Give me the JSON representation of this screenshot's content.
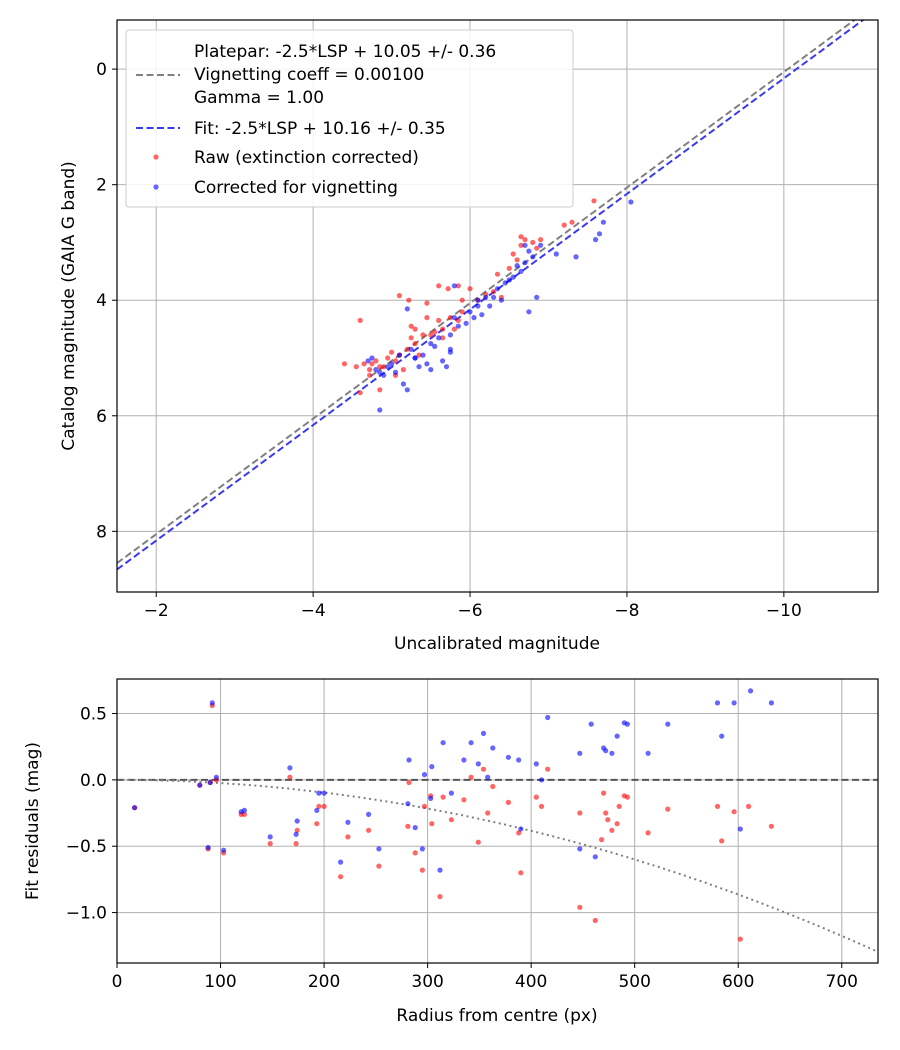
{
  "colors": {
    "raw": "#ff0000",
    "corrected": "#0000ff",
    "platepar_line": "#808080",
    "fit_line": "#3a3aee",
    "grid": "#b0b0b0",
    "vignetting_curve": "#808080"
  },
  "chart_data": [
    {
      "type": "scatter",
      "xlabel": "Uncalibrated magnitude",
      "ylabel": "Catalog magnitude (GAIA G band)",
      "xlim": [
        -1.5,
        -11.2
      ],
      "ylim": [
        9.05,
        -0.85
      ],
      "x_inverted": true,
      "y_inverted": true,
      "xticks": [
        -2,
        -4,
        -6,
        -8,
        -10
      ],
      "xtick_labels": [
        "−2",
        "−4",
        "−6",
        "−8",
        "−10"
      ],
      "yticks": [
        0,
        2,
        4,
        6,
        8
      ],
      "ytick_labels": [
        "0",
        "2",
        "4",
        "6",
        "8"
      ],
      "grid": true,
      "legend": {
        "placement": "top-left",
        "platepar_lines": [
          "Platepar: -2.5*LSP + 10.05 +/- 0.36",
          "Vignetting coeff = 0.00100",
          "Gamma = 1.00"
        ],
        "fit_label": "Fit: -2.5*LSP + 10.16 +/- 0.35",
        "raw_label": "Raw (extinction corrected)",
        "corrected_label": "Corrected for vignetting"
      },
      "lines": [
        {
          "name": "Platepar",
          "slope": 1,
          "intercept": 10.05,
          "style": "dashed"
        },
        {
          "name": "Fit",
          "slope": 1,
          "intercept": 10.16,
          "style": "dashed"
        }
      ],
      "series": [
        {
          "name": "Raw (extinction corrected)",
          "points": [
            [
              -4.75,
              5.1
            ],
            [
              -4.72,
              5.2
            ],
            [
              -4.85,
              5.15
            ],
            [
              -4.8,
              5.05
            ],
            [
              -4.9,
              5.15
            ],
            [
              -4.65,
              5.1
            ],
            [
              -4.6,
              5.6
            ],
            [
              -4.72,
              5.3
            ],
            [
              -4.95,
              5.0
            ],
            [
              -5.0,
              4.9
            ],
            [
              -5.05,
              5.05
            ],
            [
              -5.1,
              4.95
            ],
            [
              -5.15,
              5.2
            ],
            [
              -5.2,
              4.85
            ],
            [
              -5.25,
              4.65
            ],
            [
              -5.3,
              4.5
            ],
            [
              -5.3,
              4.75
            ],
            [
              -5.35,
              4.95
            ],
            [
              -5.1,
              3.92
            ],
            [
              -5.22,
              4.0
            ],
            [
              -5.25,
              4.45
            ],
            [
              -5.4,
              4.6
            ],
            [
              -5.45,
              4.3
            ],
            [
              -5.5,
              4.6
            ],
            [
              -5.55,
              4.55
            ],
            [
              -5.6,
              4.35
            ],
            [
              -5.65,
              4.5
            ],
            [
              -5.45,
              4.05
            ],
            [
              -5.6,
              3.75
            ],
            [
              -5.72,
              3.8
            ],
            [
              -5.75,
              4.3
            ],
            [
              -5.65,
              4.65
            ],
            [
              -5.8,
              4.5
            ],
            [
              -5.85,
              4.35
            ],
            [
              -5.9,
              4.2
            ],
            [
              -5.9,
              4.0
            ],
            [
              -6.0,
              3.8
            ],
            [
              -6.1,
              4.0
            ],
            [
              -6.2,
              3.9
            ],
            [
              -6.3,
              3.85
            ],
            [
              -6.4,
              3.95
            ],
            [
              -6.35,
              3.55
            ],
            [
              -6.5,
              3.45
            ],
            [
              -6.55,
              3.2
            ],
            [
              -6.6,
              3.3
            ],
            [
              -6.65,
              3.05
            ],
            [
              -6.7,
              2.95
            ],
            [
              -6.65,
              2.9
            ],
            [
              -6.8,
              3.0
            ],
            [
              -6.85,
              3.1
            ],
            [
              -6.9,
              2.95
            ],
            [
              -7.3,
              2.65
            ],
            [
              -7.2,
              2.7
            ],
            [
              -7.58,
              2.28
            ],
            [
              -4.6,
              4.35
            ],
            [
              -4.55,
              5.15
            ],
            [
              -5.05,
              5.3
            ],
            [
              -4.85,
              5.55
            ],
            [
              -4.4,
              5.1
            ],
            [
              -5.85,
              3.75
            ]
          ]
        },
        {
          "name": "Corrected for vignetting",
          "points": [
            [
              -4.7,
              5.05
            ],
            [
              -4.75,
              5.0
            ],
            [
              -4.8,
              5.2
            ],
            [
              -4.85,
              5.25
            ],
            [
              -4.9,
              5.3
            ],
            [
              -4.95,
              5.15
            ],
            [
              -5.0,
              5.1
            ],
            [
              -5.05,
              5.25
            ],
            [
              -5.1,
              4.95
            ],
            [
              -5.15,
              5.45
            ],
            [
              -5.2,
              5.55
            ],
            [
              -5.25,
              4.85
            ],
            [
              -5.3,
              5.0
            ],
            [
              -5.35,
              5.15
            ],
            [
              -5.4,
              4.95
            ],
            [
              -5.45,
              5.1
            ],
            [
              -5.5,
              4.75
            ],
            [
              -5.5,
              5.2
            ],
            [
              -5.55,
              4.8
            ],
            [
              -5.6,
              4.65
            ],
            [
              -5.65,
              5.05
            ],
            [
              -5.7,
              5.15
            ],
            [
              -5.75,
              4.9
            ],
            [
              -5.75,
              4.6
            ],
            [
              -5.8,
              4.3
            ],
            [
              -5.85,
              4.45
            ],
            [
              -5.95,
              4.4
            ],
            [
              -6.0,
              4.2
            ],
            [
              -6.05,
              4.3
            ],
            [
              -6.1,
              4.0
            ],
            [
              -6.15,
              4.25
            ],
            [
              -6.2,
              3.95
            ],
            [
              -6.25,
              4.1
            ],
            [
              -6.35,
              3.8
            ],
            [
              -6.45,
              3.7
            ],
            [
              -6.5,
              3.65
            ],
            [
              -6.55,
              3.6
            ],
            [
              -6.6,
              3.4
            ],
            [
              -6.65,
              3.5
            ],
            [
              -6.7,
              3.35
            ],
            [
              -6.7,
              3.05
            ],
            [
              -6.75,
              3.15
            ],
            [
              -6.8,
              3.25
            ],
            [
              -6.9,
              3.05
            ],
            [
              -7.1,
              3.2
            ],
            [
              -7.35,
              3.25
            ],
            [
              -7.6,
              2.95
            ],
            [
              -7.65,
              2.85
            ],
            [
              -7.7,
              2.65
            ],
            [
              -8.05,
              2.3
            ],
            [
              -6.4,
              4.0
            ],
            [
              -6.75,
              4.2
            ],
            [
              -6.85,
              3.95
            ],
            [
              -5.8,
              3.75
            ],
            [
              -5.3,
              5.0
            ],
            [
              -4.85,
              5.9
            ],
            [
              -5.2,
              4.15
            ],
            [
              -6.3,
              3.95
            ],
            [
              -6.1,
              4.1
            ],
            [
              -5.75,
              4.85
            ]
          ]
        }
      ]
    },
    {
      "type": "scatter",
      "xlabel": "Radius from centre (px)",
      "ylabel": "Fit residuals (mag)",
      "xlim": [
        0,
        735
      ],
      "ylim": [
        -1.38,
        0.76
      ],
      "xticks": [
        0,
        100,
        200,
        300,
        400,
        500,
        600,
        700
      ],
      "xtick_labels": [
        "0",
        "100",
        "200",
        "300",
        "400",
        "500",
        "600",
        "700"
      ],
      "yticks": [
        0.5,
        0.0,
        -0.5,
        -1.0
      ],
      "ytick_labels": [
        "0.5",
        "0.0",
        "−0.5",
        "−1.0"
      ],
      "grid": true,
      "reference_line": {
        "y": 0,
        "style": "dashed"
      },
      "vignetting_curve": {
        "coeff": 0.001,
        "style": "dotted"
      },
      "series": [
        {
          "name": "Raw (extinction corrected)",
          "points": [
            [
              17,
              -0.21
            ],
            [
              80,
              -0.04
            ],
            [
              88,
              -0.52
            ],
            [
              90,
              -0.02
            ],
            [
              92,
              0.56
            ],
            [
              96,
              0.0
            ],
            [
              103,
              -0.55
            ],
            [
              120,
              -0.26
            ],
            [
              123,
              -0.26
            ],
            [
              148,
              -0.48
            ],
            [
              167,
              0.02
            ],
            [
              173,
              -0.48
            ],
            [
              174,
              -0.38
            ],
            [
              193,
              -0.33
            ],
            [
              195,
              -0.2
            ],
            [
              200,
              -0.2
            ],
            [
              216,
              -0.73
            ],
            [
              223,
              -0.43
            ],
            [
              243,
              -0.38
            ],
            [
              253,
              -0.65
            ],
            [
              281,
              -0.35
            ],
            [
              282,
              -0.02
            ],
            [
              288,
              -0.55
            ],
            [
              295,
              -0.68
            ],
            [
              297,
              -0.2
            ],
            [
              303,
              -0.12
            ],
            [
              304,
              -0.33
            ],
            [
              312,
              -0.88
            ],
            [
              315,
              -0.13
            ],
            [
              323,
              -0.3
            ],
            [
              335,
              -0.15
            ],
            [
              342,
              0.02
            ],
            [
              349,
              -0.47
            ],
            [
              354,
              0.08
            ],
            [
              358,
              -0.25
            ],
            [
              363,
              -0.05
            ],
            [
              378,
              -0.17
            ],
            [
              388,
              -0.4
            ],
            [
              390,
              -0.7
            ],
            [
              405,
              -0.13
            ],
            [
              410,
              -0.2
            ],
            [
              416,
              0.08
            ],
            [
              447,
              -0.96
            ],
            [
              447,
              -0.25
            ],
            [
              462,
              -1.06
            ],
            [
              468,
              -0.45
            ],
            [
              470,
              -0.1
            ],
            [
              472,
              -0.25
            ],
            [
              474,
              -0.3
            ],
            [
              478,
              -0.38
            ],
            [
              483,
              -0.33
            ],
            [
              485,
              -0.2
            ],
            [
              490,
              -0.12
            ],
            [
              493,
              -0.13
            ],
            [
              513,
              -0.4
            ],
            [
              532,
              -0.22
            ],
            [
              580,
              -0.2
            ],
            [
              584,
              -0.46
            ],
            [
              596,
              -0.24
            ],
            [
              602,
              -1.2
            ],
            [
              610,
              -0.2
            ],
            [
              632,
              -0.35
            ]
          ]
        },
        {
          "name": "Corrected for vignetting",
          "points": [
            [
              17,
              -0.21
            ],
            [
              80,
              -0.04
            ],
            [
              88,
              -0.51
            ],
            [
              90,
              -0.02
            ],
            [
              92,
              0.58
            ],
            [
              96,
              0.02
            ],
            [
              103,
              -0.53
            ],
            [
              120,
              -0.24
            ],
            [
              123,
              -0.23
            ],
            [
              148,
              -0.43
            ],
            [
              167,
              0.09
            ],
            [
              173,
              -0.41
            ],
            [
              174,
              -0.31
            ],
            [
              193,
              -0.23
            ],
            [
              195,
              -0.1
            ],
            [
              200,
              -0.1
            ],
            [
              216,
              -0.62
            ],
            [
              223,
              -0.32
            ],
            [
              243,
              -0.26
            ],
            [
              253,
              -0.52
            ],
            [
              281,
              -0.18
            ],
            [
              282,
              0.15
            ],
            [
              288,
              -0.36
            ],
            [
              295,
              -0.52
            ],
            [
              297,
              0.04
            ],
            [
              303,
              -0.14
            ],
            [
              304,
              0.1
            ],
            [
              312,
              -0.68
            ],
            [
              315,
              0.28
            ],
            [
              323,
              -0.1
            ],
            [
              335,
              0.15
            ],
            [
              342,
              0.28
            ],
            [
              349,
              0.12
            ],
            [
              354,
              0.35
            ],
            [
              358,
              0.02
            ],
            [
              363,
              0.24
            ],
            [
              378,
              0.17
            ],
            [
              388,
              0.15
            ],
            [
              390,
              -0.37
            ],
            [
              405,
              0.12
            ],
            [
              410,
              0.0
            ],
            [
              416,
              0.47
            ],
            [
              447,
              0.2
            ],
            [
              447,
              -0.52
            ],
            [
              462,
              -0.58
            ],
            [
              458,
              0.42
            ],
            [
              470,
              0.24
            ],
            [
              472,
              0.22
            ],
            [
              478,
              0.2
            ],
            [
              483,
              0.33
            ],
            [
              490,
              0.43
            ],
            [
              493,
              0.42
            ],
            [
              513,
              0.2
            ],
            [
              532,
              0.42
            ],
            [
              580,
              0.58
            ],
            [
              584,
              0.33
            ],
            [
              596,
              0.58
            ],
            [
              602,
              -0.37
            ],
            [
              612,
              0.67
            ],
            [
              632,
              0.58
            ]
          ]
        }
      ]
    }
  ]
}
